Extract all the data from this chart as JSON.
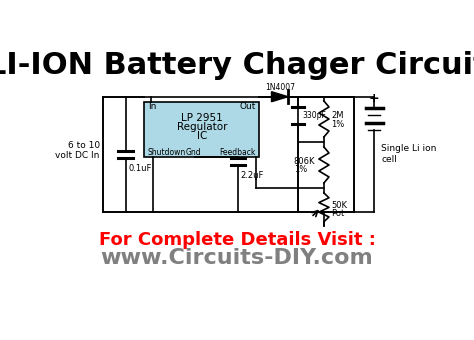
{
  "title": "LI-ION Battery Chager Circuit",
  "title_fontsize": 22,
  "title_fontweight": "bold",
  "bg_color": "#ffffff",
  "circuit_color": "#000000",
  "ic_fill_color": "#add8e6",
  "ic_border_color": "#000000",
  "footer_red": "For Complete Details Visit :",
  "footer_url": "www.Circuits-DIY.com",
  "footer_red_color": "#ff0000",
  "footer_url_color": "#808080",
  "footer_red_fontsize": 13,
  "footer_url_fontsize": 16
}
